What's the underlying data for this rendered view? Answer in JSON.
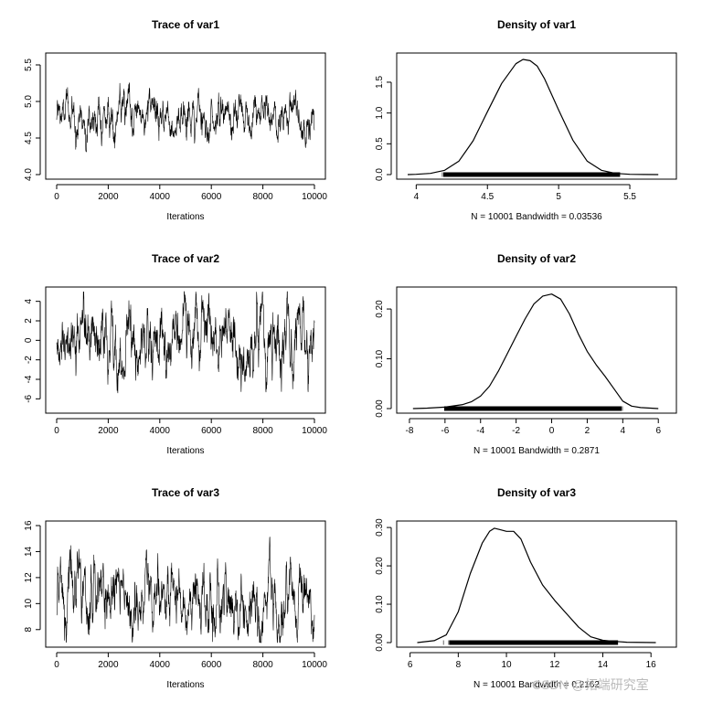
{
  "watermark": "CSDN @拓端研究室",
  "chart_data": [
    {
      "type": "line",
      "panel": "trace",
      "title": "Trace of var1",
      "xlabel": "Iterations",
      "ylabel": "",
      "xlim": [
        0,
        10000
      ],
      "ylim": [
        4.0,
        5.6
      ],
      "xticks": [
        0,
        2000,
        4000,
        6000,
        8000,
        10000
      ],
      "yticks": [
        4.0,
        4.5,
        5.0,
        5.5
      ],
      "series": [
        {
          "name": "var1",
          "center": 4.8,
          "spread": 0.14,
          "min": 4.05,
          "max": 5.6,
          "n": 10001
        }
      ]
    },
    {
      "type": "line",
      "panel": "trace",
      "title": "Trace of var2",
      "xlabel": "Iterations",
      "ylabel": "",
      "xlim": [
        0,
        10000
      ],
      "ylim": [
        -7,
        5
      ],
      "xticks": [
        0,
        2000,
        4000,
        6000,
        8000,
        10000
      ],
      "yticks": [
        -6,
        -4,
        -2,
        0,
        2,
        4
      ],
      "series": [
        {
          "name": "var2",
          "center": 0,
          "spread": 1.7,
          "min": -7.2,
          "max": 5,
          "n": 10001
        }
      ]
    },
    {
      "type": "line",
      "panel": "trace",
      "title": "Trace of var3",
      "xlabel": "Iterations",
      "ylabel": "",
      "xlim": [
        0,
        10000
      ],
      "ylim": [
        7,
        16
      ],
      "xticks": [
        0,
        2000,
        4000,
        6000,
        8000,
        10000
      ],
      "yticks": [
        8,
        10,
        12,
        14,
        16
      ],
      "series": [
        {
          "name": "var3",
          "center": 10.1,
          "spread": 1.3,
          "min": 7,
          "max": 15.6,
          "n": 10001
        }
      ]
    },
    {
      "type": "line",
      "panel": "density",
      "title": "Density of var1",
      "xlabel": "N = 10001   Bandwidth = 0.03536",
      "ylabel": "",
      "xlim": [
        3.94,
        5.75
      ],
      "ylim": [
        0,
        1.9
      ],
      "xticks": [
        4.0,
        4.5,
        5.0,
        5.5
      ],
      "yticks": [
        0.0,
        0.5,
        1.0,
        1.5
      ],
      "x": [
        3.94,
        4.0,
        4.1,
        4.2,
        4.3,
        4.4,
        4.5,
        4.6,
        4.7,
        4.75,
        4.8,
        4.85,
        4.9,
        5.0,
        5.1,
        5.2,
        5.3,
        5.4,
        5.5,
        5.6,
        5.7
      ],
      "y": [
        0.0,
        0.005,
        0.02,
        0.07,
        0.22,
        0.55,
        1.02,
        1.48,
        1.8,
        1.87,
        1.85,
        1.76,
        1.56,
        1.05,
        0.56,
        0.22,
        0.07,
        0.02,
        0.005,
        0.002,
        0.0
      ],
      "rug": [
        4.07,
        5.55
      ]
    },
    {
      "type": "line",
      "panel": "density",
      "title": "Density of var2",
      "xlabel": "N = 10001   Bandwidth = 0.2871",
      "ylabel": "",
      "xlim": [
        -8.1,
        6.4
      ],
      "ylim": [
        0,
        0.235
      ],
      "xticks": [
        -8,
        -6,
        -4,
        -2,
        0,
        2,
        4,
        6
      ],
      "yticks": [
        0.0,
        0.1,
        0.2
      ],
      "x": [
        -7.8,
        -7,
        -6,
        -5,
        -4.5,
        -4,
        -3.5,
        -3,
        -2.5,
        -2,
        -1.5,
        -1,
        -0.5,
        0,
        0.5,
        1,
        1.5,
        2,
        2.5,
        3,
        3.5,
        4,
        4.5,
        5,
        6
      ],
      "y": [
        0.0,
        0.001,
        0.003,
        0.008,
        0.014,
        0.025,
        0.045,
        0.075,
        0.11,
        0.145,
        0.18,
        0.21,
        0.226,
        0.23,
        0.22,
        0.19,
        0.15,
        0.115,
        0.088,
        0.065,
        0.04,
        0.015,
        0.005,
        0.002,
        0.0
      ],
      "rug": [
        -7.0,
        4.9
      ]
    },
    {
      "type": "line",
      "panel": "density",
      "title": "Density of var3",
      "xlabel": "N = 10001   Bandwidth = 0.2162",
      "ylabel": "",
      "xlim": [
        5.9,
        16.6
      ],
      "ylim": [
        0,
        0.305
      ],
      "xticks": [
        6,
        8,
        10,
        12,
        14,
        16
      ],
      "yticks": [
        0.0,
        0.1,
        0.2,
        0.3
      ],
      "x": [
        6.3,
        7,
        7.5,
        8,
        8.5,
        9,
        9.3,
        9.5,
        9.7,
        10,
        10.3,
        10.6,
        11,
        11.5,
        12,
        12.5,
        13,
        13.5,
        14,
        14.5,
        15,
        16.2
      ],
      "y": [
        0.0,
        0.005,
        0.02,
        0.08,
        0.18,
        0.26,
        0.29,
        0.298,
        0.295,
        0.29,
        0.29,
        0.27,
        0.21,
        0.15,
        0.11,
        0.075,
        0.04,
        0.015,
        0.006,
        0.003,
        0.001,
        0.0
      ],
      "rug": [
        6.95,
        15.3
      ]
    }
  ]
}
